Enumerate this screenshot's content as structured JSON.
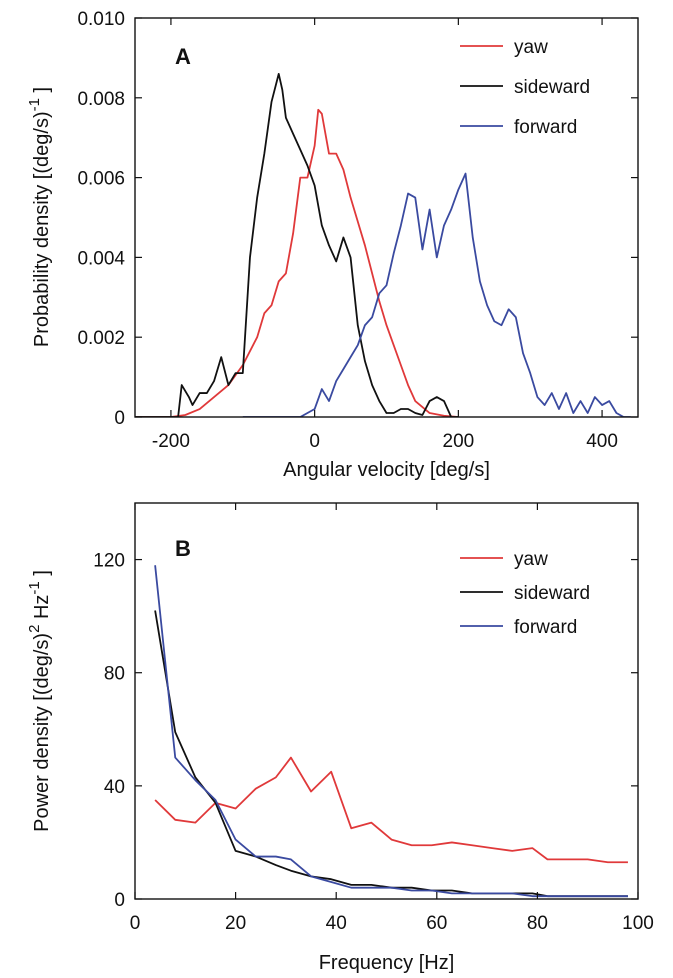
{
  "chart_data": [
    {
      "type": "line",
      "panel_label": "A",
      "xlabel": "Angular velocity [deg/s]",
      "ylabel_parts": {
        "main": "Probability density [(deg/s)",
        "sup": "-1",
        "close": "]"
      },
      "xlim": [
        -250,
        450
      ],
      "ylim": [
        0,
        0.01
      ],
      "xticks": [
        -200,
        0,
        200,
        400
      ],
      "xtick_labels": [
        "-200",
        "0",
        "200",
        "400"
      ],
      "yticks": [
        0,
        0.002,
        0.004,
        0.006,
        0.008,
        0.01
      ],
      "ytick_labels": [
        "0",
        "0.002",
        "0.004",
        "0.006",
        "0.008",
        "0.010"
      ],
      "grid": false,
      "legend_position": "top-right",
      "series": [
        {
          "name": "yaw",
          "color": "#e0393a",
          "x": [
            -250,
            -200,
            -180,
            -160,
            -140,
            -120,
            -100,
            -80,
            -70,
            -60,
            -50,
            -40,
            -30,
            -20,
            -10,
            0,
            5,
            10,
            20,
            30,
            40,
            50,
            60,
            70,
            80,
            90,
            100,
            110,
            120,
            130,
            140,
            160,
            180,
            200
          ],
          "y": [
            0,
            0,
            5e-05,
            0.0002,
            0.0005,
            0.0008,
            0.0013,
            0.002,
            0.0026,
            0.0028,
            0.0034,
            0.0036,
            0.0046,
            0.006,
            0.006,
            0.0068,
            0.0077,
            0.0076,
            0.0066,
            0.0066,
            0.0062,
            0.0055,
            0.0049,
            0.0043,
            0.0036,
            0.0029,
            0.0023,
            0.0018,
            0.0013,
            0.0008,
            0.0004,
            0.0001,
            3e-05,
            0
          ]
        },
        {
          "name": "sideward",
          "color": "#111111",
          "x": [
            -250,
            -190,
            -185,
            -175,
            -170,
            -160,
            -150,
            -140,
            -130,
            -120,
            -110,
            -100,
            -90,
            -80,
            -70,
            -60,
            -50,
            -45,
            -40,
            -30,
            -20,
            -10,
            0,
            10,
            20,
            30,
            40,
            50,
            60,
            70,
            80,
            90,
            100,
            110,
            120,
            130,
            140,
            150,
            160,
            170,
            180,
            190,
            200
          ],
          "y": [
            0,
            0,
            0.0008,
            0.0005,
            0.0003,
            0.0006,
            0.0006,
            0.0009,
            0.0015,
            0.0008,
            0.0011,
            0.0011,
            0.004,
            0.0055,
            0.0066,
            0.0079,
            0.0086,
            0.0082,
            0.0075,
            0.0071,
            0.0067,
            0.0063,
            0.0058,
            0.0048,
            0.0043,
            0.0039,
            0.0045,
            0.004,
            0.0023,
            0.0014,
            0.0008,
            0.0004,
            0.0001,
            0.0001,
            0.0002,
            0.0002,
            0.0001,
            5e-05,
            0.0004,
            0.0005,
            0.0004,
            0,
            0
          ]
        },
        {
          "name": "forward",
          "color": "#3a4aa0",
          "x": [
            -100,
            -20,
            0,
            10,
            20,
            30,
            40,
            50,
            60,
            70,
            80,
            90,
            100,
            110,
            120,
            130,
            140,
            150,
            160,
            170,
            180,
            190,
            200,
            210,
            220,
            230,
            240,
            250,
            260,
            270,
            280,
            290,
            300,
            310,
            320,
            330,
            340,
            350,
            360,
            370,
            380,
            390,
            400,
            410,
            420,
            430,
            440
          ],
          "y": [
            0,
            0,
            0.0002,
            0.0007,
            0.0004,
            0.0009,
            0.0012,
            0.0015,
            0.0018,
            0.0023,
            0.0025,
            0.0031,
            0.0033,
            0.0041,
            0.0048,
            0.0056,
            0.0055,
            0.0042,
            0.0052,
            0.004,
            0.0048,
            0.0052,
            0.0057,
            0.0061,
            0.0045,
            0.0034,
            0.0028,
            0.0024,
            0.0023,
            0.0027,
            0.0025,
            0.0016,
            0.0011,
            0.0005,
            0.0003,
            0.0006,
            0.0002,
            0.0006,
            0.0001,
            0.0004,
            0.0001,
            0.0005,
            0.0003,
            0.0004,
            0.0001,
            0,
            0
          ]
        }
      ]
    },
    {
      "type": "line",
      "panel_label": "B",
      "xlabel": "Frequency [Hz]",
      "ylabel_parts": {
        "main": "Power density [(deg/s)",
        "sup": "2",
        "mid": " Hz",
        "sup2": "-1",
        "close": "]"
      },
      "xlim": [
        0,
        100
      ],
      "ylim": [
        0,
        140
      ],
      "xticks": [
        0,
        20,
        40,
        60,
        80,
        100
      ],
      "xtick_labels": [
        "0",
        "20",
        "40",
        "60",
        "80",
        "100"
      ],
      "yticks": [
        0,
        40,
        80,
        120
      ],
      "ytick_labels": [
        "0",
        "40",
        "80",
        "120"
      ],
      "grid": false,
      "legend_position": "top-right",
      "series": [
        {
          "name": "yaw",
          "color": "#e0393a",
          "x": [
            4,
            8,
            12,
            16,
            20,
            24,
            28,
            31,
            35,
            39,
            43,
            47,
            51,
            55,
            59,
            63,
            67,
            71,
            75,
            79,
            82,
            86,
            90,
            94,
            98
          ],
          "y": [
            35,
            28,
            27,
            34,
            32,
            39,
            43,
            50,
            38,
            45,
            25,
            27,
            21,
            19,
            19,
            20,
            19,
            18,
            17,
            18,
            14,
            14,
            14,
            13,
            13
          ]
        },
        {
          "name": "sideward",
          "color": "#111111",
          "x": [
            4,
            8,
            12,
            16,
            20,
            24,
            28,
            31,
            35,
            39,
            43,
            47,
            51,
            55,
            59,
            63,
            67,
            71,
            75,
            79,
            82,
            86,
            90,
            94,
            98
          ],
          "y": [
            102,
            59,
            43,
            34,
            17,
            15,
            12,
            10,
            8,
            7,
            5,
            5,
            4,
            4,
            3,
            3,
            2,
            2,
            2,
            2,
            1,
            1,
            1,
            1,
            1
          ]
        },
        {
          "name": "forward",
          "color": "#3a4aa0",
          "x": [
            4,
            8,
            12,
            16,
            20,
            24,
            28,
            31,
            35,
            39,
            43,
            47,
            51,
            55,
            59,
            63,
            67,
            71,
            75,
            79,
            82,
            86,
            90,
            94,
            98
          ],
          "y": [
            118,
            50,
            42,
            35,
            21,
            15,
            15,
            14,
            8,
            6,
            4,
            4,
            4,
            3,
            3,
            2,
            2,
            2,
            2,
            1,
            1,
            1,
            1,
            1,
            1
          ]
        }
      ]
    }
  ]
}
